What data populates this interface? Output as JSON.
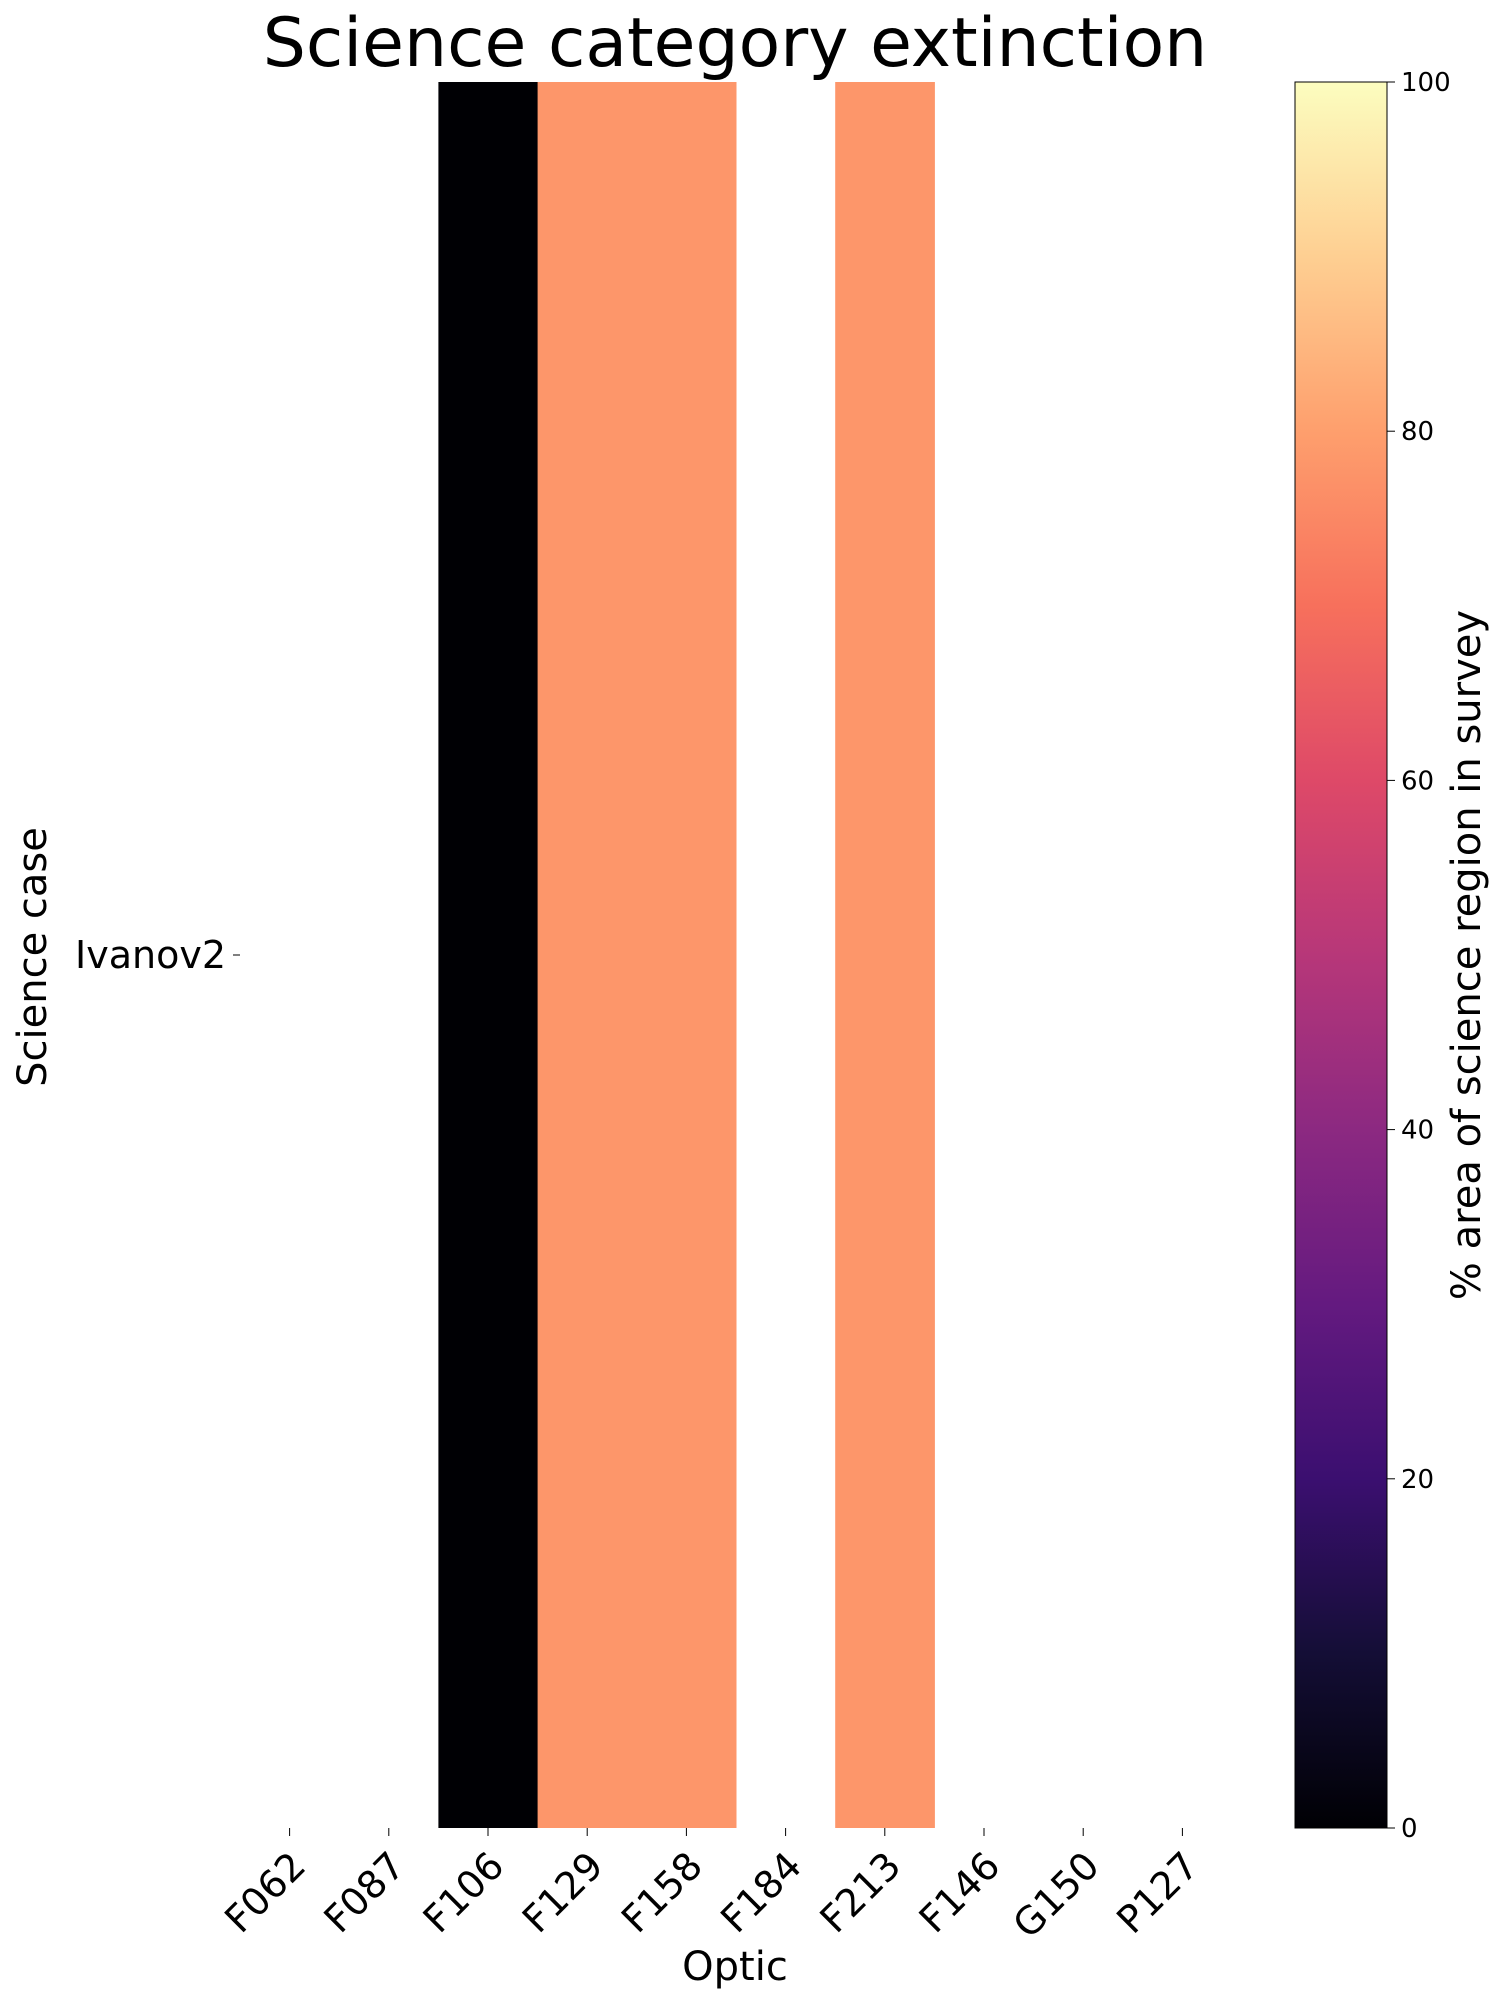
{
  "chart_data": {
    "type": "heatmap",
    "title": "Science category extinction",
    "xlabel": "Optic",
    "ylabel": "Science case",
    "x_categories": [
      "F062",
      "F087",
      "F106",
      "F129",
      "F158",
      "F184",
      "F213",
      "F146",
      "G150",
      "P127"
    ],
    "y_categories": [
      "Ivanov2"
    ],
    "values": [
      [
        null,
        null,
        0,
        78,
        78,
        null,
        78,
        null,
        null,
        null
      ]
    ],
    "colormap": "magma",
    "colorbar": {
      "label": "% area of science region in survey",
      "range": [
        0,
        100
      ],
      "ticks": [
        0,
        20,
        40,
        60,
        80,
        100
      ]
    },
    "missing_color": "#ffffff"
  }
}
